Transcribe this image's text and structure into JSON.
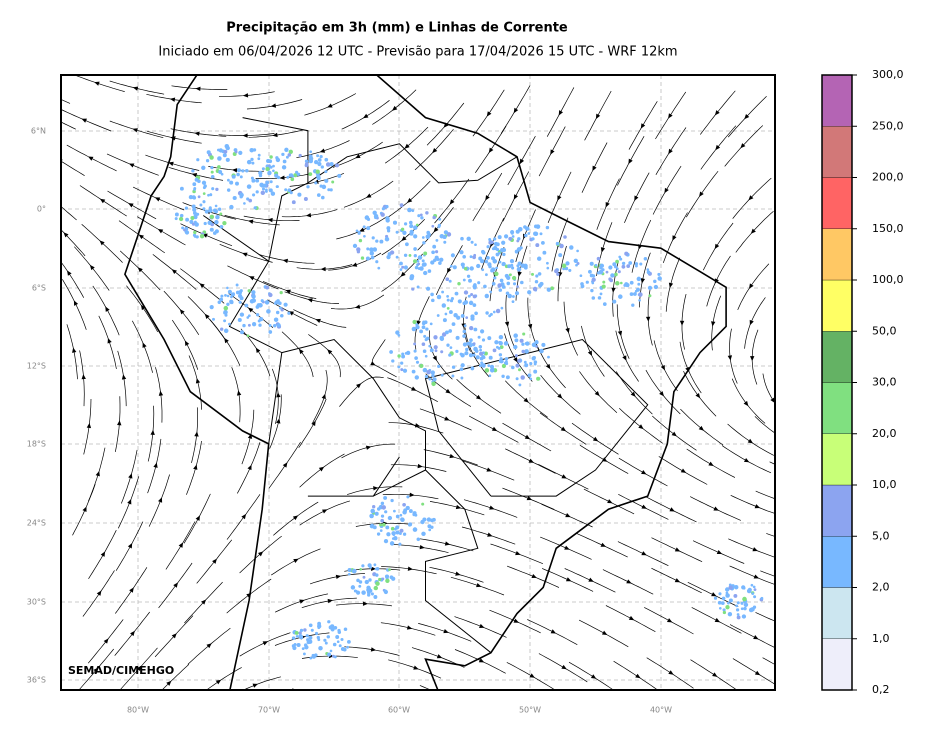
{
  "header": {
    "title": "Precipitação em 3h (mm) e Linhas de Corrente",
    "subtitle": "Iniciado em 06/04/2026 12 UTC - Previsão para 17/04/2026 15 UTC - WRF 12km"
  },
  "map": {
    "lat_labels": [
      "6°N",
      "0°",
      "6°S",
      "12°S",
      "18°S",
      "24°S",
      "30°S",
      "36°S"
    ],
    "lon_labels": [
      "80°W",
      "70°W",
      "60°W",
      "50°W",
      "40°W"
    ],
    "watermark": "SEMAD/CIMEHGO"
  },
  "colorbar": {
    "labels": [
      "0,2",
      "1,0",
      "2,0",
      "5,0",
      "10,0",
      "20,0",
      "30,0",
      "50,0",
      "100,0",
      "150,0",
      "200,0",
      "250,0",
      "300,0"
    ],
    "colors": [
      "#eeeefa",
      "#cce6f0",
      "#78b8ff",
      "#8ca4f0",
      "#c8ff78",
      "#80e080",
      "#64b264",
      "#ffff64",
      "#ffc864",
      "#ff6464",
      "#d27878",
      "#b464b4"
    ]
  }
}
